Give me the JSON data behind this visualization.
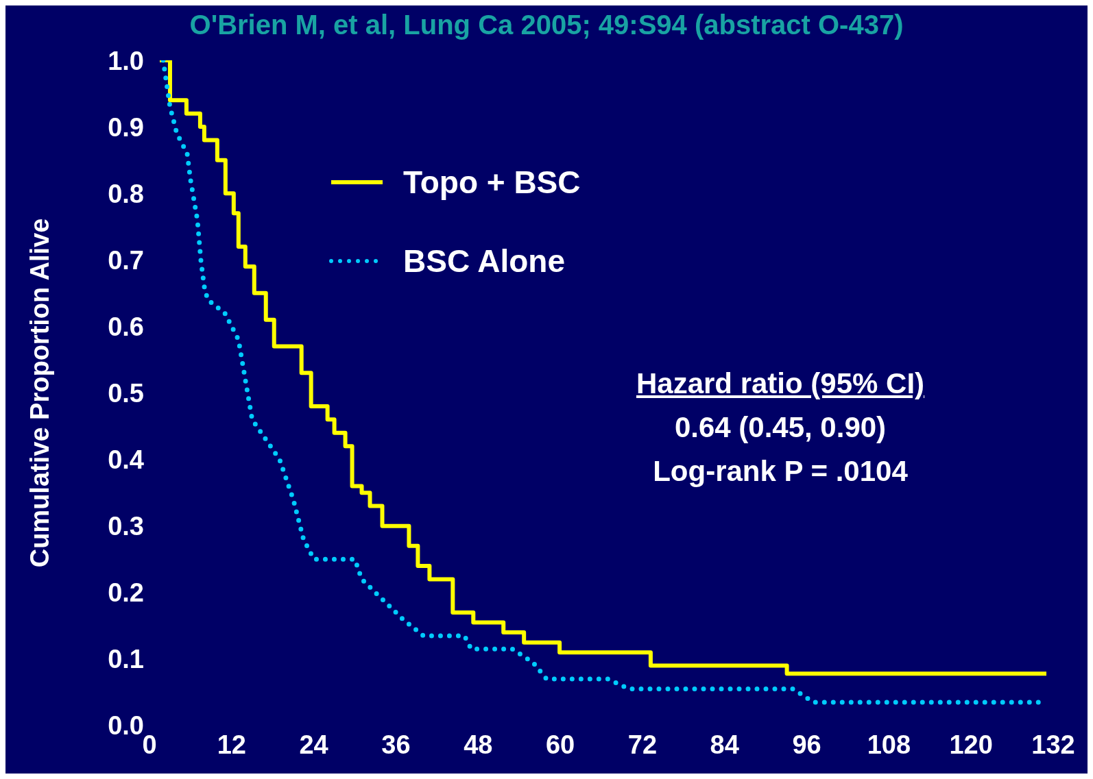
{
  "chart_data": {
    "type": "step",
    "title": "O'Brien M, et al, Lung Ca 2005; 49:S94 (abstract O-437)",
    "ylabel": "Cumulative Proportion Alive",
    "xlim": [
      0,
      132
    ],
    "xticks": [
      0,
      12,
      24,
      36,
      48,
      60,
      72,
      84,
      96,
      108,
      120,
      132
    ],
    "ylim": [
      0,
      1
    ],
    "yticks": [
      {
        "value": 0,
        "label": "0.0"
      },
      0.1,
      0.2,
      0.3,
      0.4,
      0.5,
      0.6,
      0.7,
      0.8,
      0.9,
      {
        "value": 1,
        "label": "1.0"
      }
    ],
    "grid": false,
    "legend": "top",
    "annotations": [
      "Hazard ratio (95% CI)",
      "0.64 (0.45, 0.90)",
      "Log-rank P = .0104"
    ],
    "series": [
      {
        "name": "Topo + BSC",
        "type": "step",
        "color": "#ffff00",
        "line_style": "solid",
        "x": [
          1.5,
          3,
          5.4,
          7.4,
          8,
          9.9,
          11.1,
          12.3,
          13,
          14,
          15.3,
          17,
          18.2,
          22.2,
          23.6,
          26,
          27,
          28.6,
          29.6,
          31,
          32.2,
          34,
          37.9,
          39.2,
          40.9,
          44.3,
          47.3,
          51.7,
          54.7,
          59.9,
          73.2,
          93.1,
          100,
          131
        ],
        "values": [
          1.0,
          0.94,
          0.92,
          0.9,
          0.88,
          0.85,
          0.8,
          0.77,
          0.72,
          0.69,
          0.65,
          0.61,
          0.57,
          0.53,
          0.48,
          0.46,
          0.44,
          0.42,
          0.36,
          0.35,
          0.33,
          0.3,
          0.27,
          0.24,
          0.22,
          0.17,
          0.155,
          0.14,
          0.125,
          0.11,
          0.09,
          0.078,
          0.078,
          0.078
        ]
      },
      {
        "name": "BSC Alone",
        "type": "line",
        "color": "#00ccff",
        "line_style": "dotted",
        "x": [
          2,
          3,
          4,
          5.5,
          6,
          7,
          7.5,
          8,
          8.5,
          11,
          13,
          14,
          15,
          17,
          19,
          21,
          22.5,
          24,
          30,
          31,
          34,
          37,
          40,
          46,
          47,
          53,
          56,
          58,
          67,
          70,
          94,
          97,
          131
        ],
        "values": [
          1.0,
          0.93,
          0.89,
          0.86,
          0.82,
          0.76,
          0.7,
          0.66,
          0.64,
          0.62,
          0.58,
          0.52,
          0.46,
          0.43,
          0.4,
          0.34,
          0.28,
          0.25,
          0.25,
          0.22,
          0.19,
          0.16,
          0.135,
          0.135,
          0.115,
          0.115,
          0.095,
          0.07,
          0.07,
          0.055,
          0.055,
          0.035,
          0.035
        ]
      }
    ]
  }
}
